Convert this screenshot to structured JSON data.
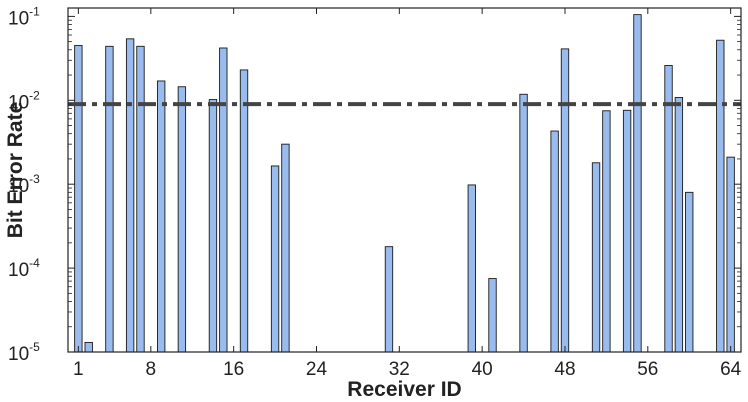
{
  "chart_data": {
    "type": "bar",
    "xlabel": "Receiver ID",
    "ylabel": "Bit Error Rate",
    "y_scale": "log",
    "ylim": [
      1e-05,
      0.1
    ],
    "xlim": [
      0,
      65
    ],
    "x_ticks": [
      1,
      8,
      16,
      24,
      32,
      40,
      48,
      56,
      64
    ],
    "y_tick_labels": [
      {
        "value": 1e-05,
        "base": "10",
        "exp": "-5"
      },
      {
        "value": 0.0001,
        "base": "10",
        "exp": "-4"
      },
      {
        "value": 0.001,
        "base": "10",
        "exp": "-3"
      },
      {
        "value": 0.01,
        "base": "10",
        "exp": "-2"
      },
      {
        "value": 0.1,
        "base": "10",
        "exp": "-1"
      }
    ],
    "threshold": 0.009,
    "grid": false,
    "bar_color": "#99bbee",
    "bar_edge_color": "#1a1a1a",
    "threshold_color": "#444444",
    "bars": [
      {
        "x": 1,
        "y": 0.045
      },
      {
        "x": 2,
        "y": 1.3e-05
      },
      {
        "x": 4,
        "y": 0.044
      },
      {
        "x": 6,
        "y": 0.054
      },
      {
        "x": 7,
        "y": 0.044
      },
      {
        "x": 9,
        "y": 0.017
      },
      {
        "x": 11,
        "y": 0.0145
      },
      {
        "x": 14,
        "y": 0.0102
      },
      {
        "x": 15,
        "y": 0.042
      },
      {
        "x": 17,
        "y": 0.023
      },
      {
        "x": 20,
        "y": 0.00165
      },
      {
        "x": 21,
        "y": 0.003
      },
      {
        "x": 31,
        "y": 0.00018
      },
      {
        "x": 39,
        "y": 0.00098
      },
      {
        "x": 41,
        "y": 7.5e-05
      },
      {
        "x": 44,
        "y": 0.0118
      },
      {
        "x": 47,
        "y": 0.0043
      },
      {
        "x": 48,
        "y": 0.041
      },
      {
        "x": 51,
        "y": 0.0018
      },
      {
        "x": 52,
        "y": 0.0075
      },
      {
        "x": 54,
        "y": 0.0076
      },
      {
        "x": 55,
        "y": 0.105
      },
      {
        "x": 58,
        "y": 0.026
      },
      {
        "x": 59,
        "y": 0.0108
      },
      {
        "x": 60,
        "y": 0.0008
      },
      {
        "x": 63,
        "y": 0.052
      },
      {
        "x": 64,
        "y": 0.0021
      }
    ]
  }
}
